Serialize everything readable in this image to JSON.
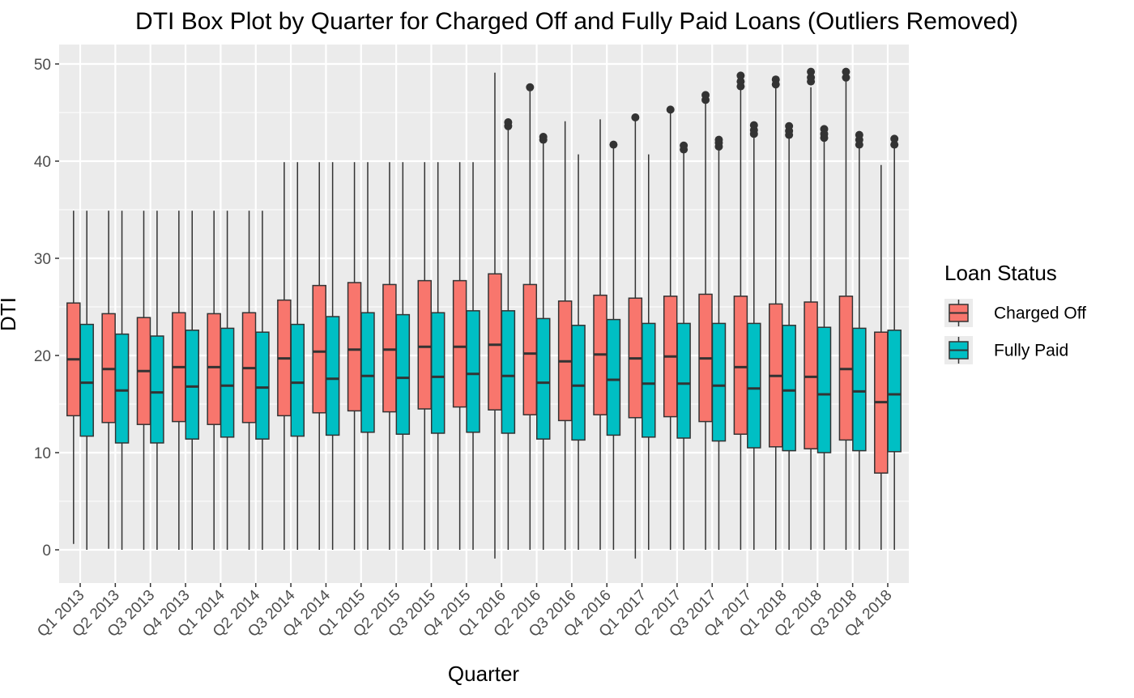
{
  "chart_data": {
    "type": "boxplot",
    "title": "DTI Box Plot by Quarter for Charged Off and Fully Paid Loans (Outliers Removed)",
    "xlabel": "Quarter",
    "ylabel": "DTI",
    "ylim": [
      -3.5,
      52
    ],
    "yticks": [
      0,
      10,
      20,
      30,
      40,
      50
    ],
    "grid": true,
    "legend": {
      "title": "Loan Status",
      "position": "right",
      "entries": [
        "Charged Off",
        "Fully Paid"
      ]
    },
    "categories": [
      "Q1 2013",
      "Q2 2013",
      "Q3 2013",
      "Q4 2013",
      "Q1 2014",
      "Q2 2014",
      "Q3 2014",
      "Q4 2014",
      "Q1 2015",
      "Q2 2015",
      "Q3 2015",
      "Q4 2015",
      "Q1 2016",
      "Q2 2016",
      "Q3 2016",
      "Q4 2016",
      "Q1 2017",
      "Q2 2017",
      "Q3 2017",
      "Q4 2017",
      "Q1 2018",
      "Q2 2018",
      "Q3 2018",
      "Q4 2018"
    ],
    "series": [
      {
        "name": "Charged Off",
        "color": "#F8766D",
        "boxes": [
          {
            "min": 0.6,
            "q1": 13.8,
            "median": 19.6,
            "q3": 25.4,
            "max": 34.9,
            "outliers": []
          },
          {
            "min": 0.1,
            "q1": 13.1,
            "median": 18.6,
            "q3": 24.3,
            "max": 34.9,
            "outliers": []
          },
          {
            "min": 0.0,
            "q1": 12.9,
            "median": 18.4,
            "q3": 23.9,
            "max": 34.9,
            "outliers": []
          },
          {
            "min": 0.0,
            "q1": 13.2,
            "median": 18.8,
            "q3": 24.4,
            "max": 34.9,
            "outliers": []
          },
          {
            "min": 0.0,
            "q1": 12.9,
            "median": 18.8,
            "q3": 24.3,
            "max": 34.9,
            "outliers": []
          },
          {
            "min": 0.0,
            "q1": 13.1,
            "median": 18.7,
            "q3": 24.4,
            "max": 34.9,
            "outliers": []
          },
          {
            "min": 0.0,
            "q1": 13.8,
            "median": 19.7,
            "q3": 25.7,
            "max": 39.9,
            "outliers": []
          },
          {
            "min": 0.0,
            "q1": 14.1,
            "median": 20.4,
            "q3": 27.2,
            "max": 39.9,
            "outliers": []
          },
          {
            "min": 0.0,
            "q1": 14.3,
            "median": 20.6,
            "q3": 27.5,
            "max": 39.9,
            "outliers": []
          },
          {
            "min": 0.0,
            "q1": 14.2,
            "median": 20.6,
            "q3": 27.3,
            "max": 39.9,
            "outliers": []
          },
          {
            "min": 0.0,
            "q1": 14.5,
            "median": 20.9,
            "q3": 27.7,
            "max": 39.9,
            "outliers": []
          },
          {
            "min": 0.0,
            "q1": 14.7,
            "median": 20.9,
            "q3": 27.7,
            "max": 39.9,
            "outliers": []
          },
          {
            "min": -0.9,
            "q1": 14.4,
            "median": 21.1,
            "q3": 28.4,
            "max": 49.1,
            "outliers": []
          },
          {
            "min": 0.0,
            "q1": 13.9,
            "median": 20.2,
            "q3": 27.3,
            "max": 47.4,
            "outliers": [
              47.6
            ]
          },
          {
            "min": 0.0,
            "q1": 13.3,
            "median": 19.4,
            "q3": 25.6,
            "max": 44.1,
            "outliers": []
          },
          {
            "min": 0.0,
            "q1": 13.9,
            "median": 20.1,
            "q3": 26.2,
            "max": 44.3,
            "outliers": []
          },
          {
            "min": -0.9,
            "q1": 13.6,
            "median": 19.7,
            "q3": 25.9,
            "max": 44.3,
            "outliers": [
              44.5
            ]
          },
          {
            "min": 0.0,
            "q1": 13.7,
            "median": 19.9,
            "q3": 26.1,
            "max": 45.1,
            "outliers": [
              45.3
            ]
          },
          {
            "min": 0.0,
            "q1": 13.2,
            "median": 19.7,
            "q3": 26.3,
            "max": 46.1,
            "outliers": [
              46.3,
              46.8
            ]
          },
          {
            "min": 0.0,
            "q1": 11.9,
            "median": 18.8,
            "q3": 26.1,
            "max": 47.4,
            "outliers": [
              47.7,
              48.2,
              48.8
            ]
          },
          {
            "min": 0.0,
            "q1": 10.6,
            "median": 17.9,
            "q3": 25.3,
            "max": 47.6,
            "outliers": [
              47.9,
              48.4
            ]
          },
          {
            "min": 0.0,
            "q1": 10.4,
            "median": 17.8,
            "q3": 25.5,
            "max": 47.6,
            "outliers": [
              48.2,
              48.6,
              49.2
            ]
          },
          {
            "min": 0.0,
            "q1": 11.3,
            "median": 18.6,
            "q3": 26.1,
            "max": 48.4,
            "outliers": [
              48.6,
              49.2
            ]
          },
          {
            "min": 0.0,
            "q1": 7.9,
            "median": 15.2,
            "q3": 22.4,
            "max": 39.6,
            "outliers": []
          }
        ]
      },
      {
        "name": "Fully Paid",
        "color": "#00BFC4",
        "boxes": [
          {
            "min": 0.0,
            "q1": 11.7,
            "median": 17.2,
            "q3": 23.2,
            "max": 34.9,
            "outliers": []
          },
          {
            "min": 0.0,
            "q1": 11.0,
            "median": 16.4,
            "q3": 22.2,
            "max": 34.9,
            "outliers": []
          },
          {
            "min": 0.0,
            "q1": 11.0,
            "median": 16.2,
            "q3": 22.0,
            "max": 34.9,
            "outliers": []
          },
          {
            "min": 0.0,
            "q1": 11.4,
            "median": 16.8,
            "q3": 22.6,
            "max": 34.9,
            "outliers": []
          },
          {
            "min": 0.0,
            "q1": 11.6,
            "median": 16.9,
            "q3": 22.8,
            "max": 34.9,
            "outliers": []
          },
          {
            "min": 0.0,
            "q1": 11.4,
            "median": 16.7,
            "q3": 22.4,
            "max": 34.9,
            "outliers": []
          },
          {
            "min": 0.0,
            "q1": 11.7,
            "median": 17.2,
            "q3": 23.2,
            "max": 39.9,
            "outliers": []
          },
          {
            "min": 0.0,
            "q1": 11.8,
            "median": 17.6,
            "q3": 24.0,
            "max": 39.9,
            "outliers": []
          },
          {
            "min": 0.0,
            "q1": 12.1,
            "median": 17.9,
            "q3": 24.4,
            "max": 39.9,
            "outliers": []
          },
          {
            "min": 0.0,
            "q1": 11.9,
            "median": 17.7,
            "q3": 24.2,
            "max": 39.9,
            "outliers": []
          },
          {
            "min": 0.0,
            "q1": 12.0,
            "median": 17.8,
            "q3": 24.4,
            "max": 39.9,
            "outliers": []
          },
          {
            "min": 0.0,
            "q1": 12.1,
            "median": 18.1,
            "q3": 24.6,
            "max": 39.9,
            "outliers": []
          },
          {
            "min": 0.0,
            "q1": 12.0,
            "median": 17.9,
            "q3": 24.6,
            "max": 43.4,
            "outliers": [
              43.6,
              44.0
            ]
          },
          {
            "min": 0.0,
            "q1": 11.4,
            "median": 17.2,
            "q3": 23.8,
            "max": 41.9,
            "outliers": [
              42.2,
              42.5
            ]
          },
          {
            "min": 0.0,
            "q1": 11.3,
            "median": 16.9,
            "q3": 23.1,
            "max": 40.7,
            "outliers": []
          },
          {
            "min": 0.0,
            "q1": 11.8,
            "median": 17.5,
            "q3": 23.7,
            "max": 41.4,
            "outliers": [
              41.7
            ]
          },
          {
            "min": 0.0,
            "q1": 11.6,
            "median": 17.1,
            "q3": 23.3,
            "max": 40.7,
            "outliers": []
          },
          {
            "min": 0.0,
            "q1": 11.5,
            "median": 17.1,
            "q3": 23.3,
            "max": 40.9,
            "outliers": [
              41.2,
              41.6
            ]
          },
          {
            "min": 0.0,
            "q1": 11.2,
            "median": 16.9,
            "q3": 23.3,
            "max": 41.2,
            "outliers": [
              41.5,
              41.9,
              42.2
            ]
          },
          {
            "min": 0.0,
            "q1": 10.5,
            "median": 16.6,
            "q3": 23.3,
            "max": 42.4,
            "outliers": [
              42.8,
              43.2,
              43.7
            ]
          },
          {
            "min": 0.0,
            "q1": 10.2,
            "median": 16.4,
            "q3": 23.1,
            "max": 42.4,
            "outliers": [
              42.7,
              43.1,
              43.6
            ]
          },
          {
            "min": 0.0,
            "q1": 10.0,
            "median": 16.0,
            "q3": 22.9,
            "max": 42.1,
            "outliers": [
              42.4,
              42.8,
              43.3
            ]
          },
          {
            "min": 0.0,
            "q1": 10.2,
            "median": 16.3,
            "q3": 22.8,
            "max": 41.4,
            "outliers": [
              41.7,
              42.2,
              42.7
            ]
          },
          {
            "min": 0.0,
            "q1": 10.1,
            "median": 16.0,
            "q3": 22.6,
            "max": 41.4,
            "outliers": [
              41.7,
              42.3
            ]
          }
        ]
      }
    ]
  }
}
